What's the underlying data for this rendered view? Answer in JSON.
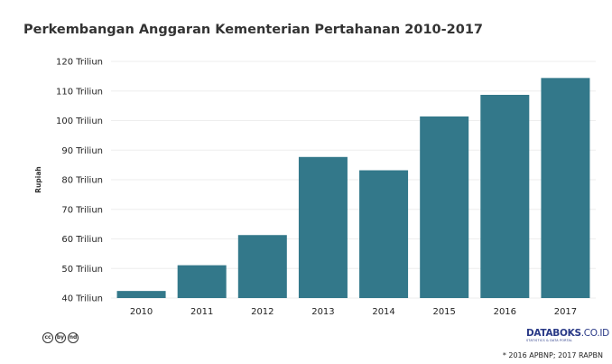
{
  "chart_data": {
    "type": "bar",
    "title": "Perkembangan Anggaran Kementerian Pertahanan 2010-2017",
    "xlabel": "",
    "ylabel": "Rupiah",
    "categories": [
      "2010",
      "2011",
      "2012",
      "2013",
      "2014",
      "2015",
      "2016",
      "2017"
    ],
    "values": [
      42.4,
      51.1,
      61.3,
      87.7,
      83.2,
      101.4,
      108.7,
      114.4
    ],
    "ylim": [
      40,
      120
    ],
    "yticks": [
      40,
      50,
      60,
      70,
      80,
      90,
      100,
      110,
      120
    ],
    "ytick_labels": [
      "40 Triliun",
      "50 Triliun",
      "60 Triliun",
      "70 Triliun",
      "80 Triliun",
      "90 Triliun",
      "100 Triliun",
      "110 Triliun",
      "120 Triliun"
    ],
    "bar_color": "#33788a",
    "grid": true,
    "legend": "none"
  },
  "footer": {
    "cc_icons": [
      "cc",
      "by",
      "nd"
    ],
    "cc_icon_names": [
      "creative-commons-icon",
      "attribution-icon",
      "no-derivatives-icon"
    ],
    "logo_main": "DATABOKS",
    "logo_suffix": ".CO.ID",
    "logo_sub": "STATISTICS & DATA PORTAL",
    "note": "* 2016 APBNP; 2017 RAPBN"
  }
}
